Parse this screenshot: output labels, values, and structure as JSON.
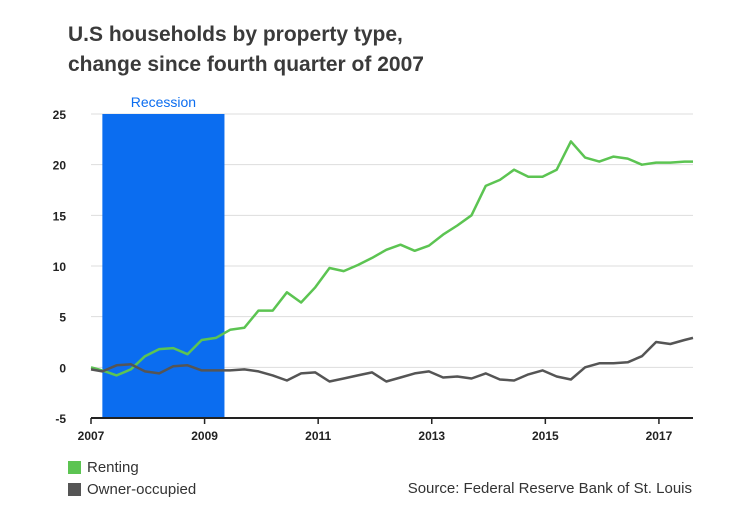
{
  "title": {
    "line1": "U.S households by property type,",
    "line2": "change since fourth quarter of 2007"
  },
  "source": "Source: Federal Reserve Bank of St. Louis",
  "colors": {
    "renting": "#5cc452",
    "owner": "#555555",
    "recession": "#0b6df0",
    "grid": "#dddddd",
    "axis": "#222222"
  },
  "legend": [
    {
      "label": "Renting",
      "color": "#5cc452"
    },
    {
      "label": "Owner-occupied",
      "color": "#555555"
    }
  ],
  "chart_data": {
    "type": "line",
    "title": "U.S households by property type, change since fourth quarter of 2007",
    "xlabel": "",
    "ylabel": "",
    "ylim": [
      -5,
      25
    ],
    "xlim": [
      2007,
      2017.6
    ],
    "yticks": [
      25,
      20,
      15,
      10,
      5,
      0,
      -5
    ],
    "xticks": [
      "2007",
      "2009",
      "2011",
      "2013",
      "2015",
      "2017"
    ],
    "grid": true,
    "legend_position": "bottom-left",
    "recession": {
      "label": "Recession",
      "start": 2007.2,
      "end": 2009.35
    },
    "x": [
      2007.0,
      2007.2,
      2007.45,
      2007.7,
      2007.95,
      2008.2,
      2008.45,
      2008.7,
      2008.95,
      2009.2,
      2009.45,
      2009.7,
      2009.95,
      2010.2,
      2010.45,
      2010.7,
      2010.95,
      2011.2,
      2011.45,
      2011.7,
      2011.95,
      2012.2,
      2012.45,
      2012.7,
      2012.95,
      2013.2,
      2013.45,
      2013.7,
      2013.95,
      2014.2,
      2014.45,
      2014.7,
      2014.95,
      2015.2,
      2015.45,
      2015.7,
      2015.95,
      2016.2,
      2016.45,
      2016.7,
      2016.95,
      2017.2,
      2017.45,
      2017.6
    ],
    "series": [
      {
        "name": "Renting",
        "values": [
          0.0,
          -0.3,
          -0.8,
          -0.2,
          1.1,
          1.8,
          1.9,
          1.3,
          2.7,
          2.9,
          3.7,
          3.9,
          5.6,
          5.6,
          7.4,
          6.4,
          7.9,
          9.8,
          9.5,
          10.1,
          10.8,
          11.6,
          12.1,
          11.5,
          12.0,
          13.1,
          14.0,
          15.0,
          17.9,
          18.5,
          19.5,
          18.8,
          18.8,
          19.5,
          22.3,
          20.7,
          20.3,
          20.8,
          20.6,
          20.0,
          20.2,
          20.2,
          20.3,
          20.3
        ],
        "color": "#5cc452"
      },
      {
        "name": "Owner-occupied",
        "values": [
          -0.2,
          -0.4,
          0.2,
          0.3,
          -0.4,
          -0.6,
          0.1,
          0.2,
          -0.3,
          -0.3,
          -0.3,
          -0.2,
          -0.4,
          -0.8,
          -1.3,
          -0.6,
          -0.5,
          -1.4,
          -1.1,
          -0.8,
          -0.5,
          -1.4,
          -1.0,
          -0.6,
          -0.4,
          -1.0,
          -0.9,
          -1.1,
          -0.6,
          -1.2,
          -1.3,
          -0.7,
          -0.3,
          -0.9,
          -1.2,
          0.0,
          0.4,
          0.4,
          0.5,
          1.1,
          2.5,
          2.3,
          2.7,
          2.9
        ],
        "color": "#555555"
      }
    ]
  }
}
